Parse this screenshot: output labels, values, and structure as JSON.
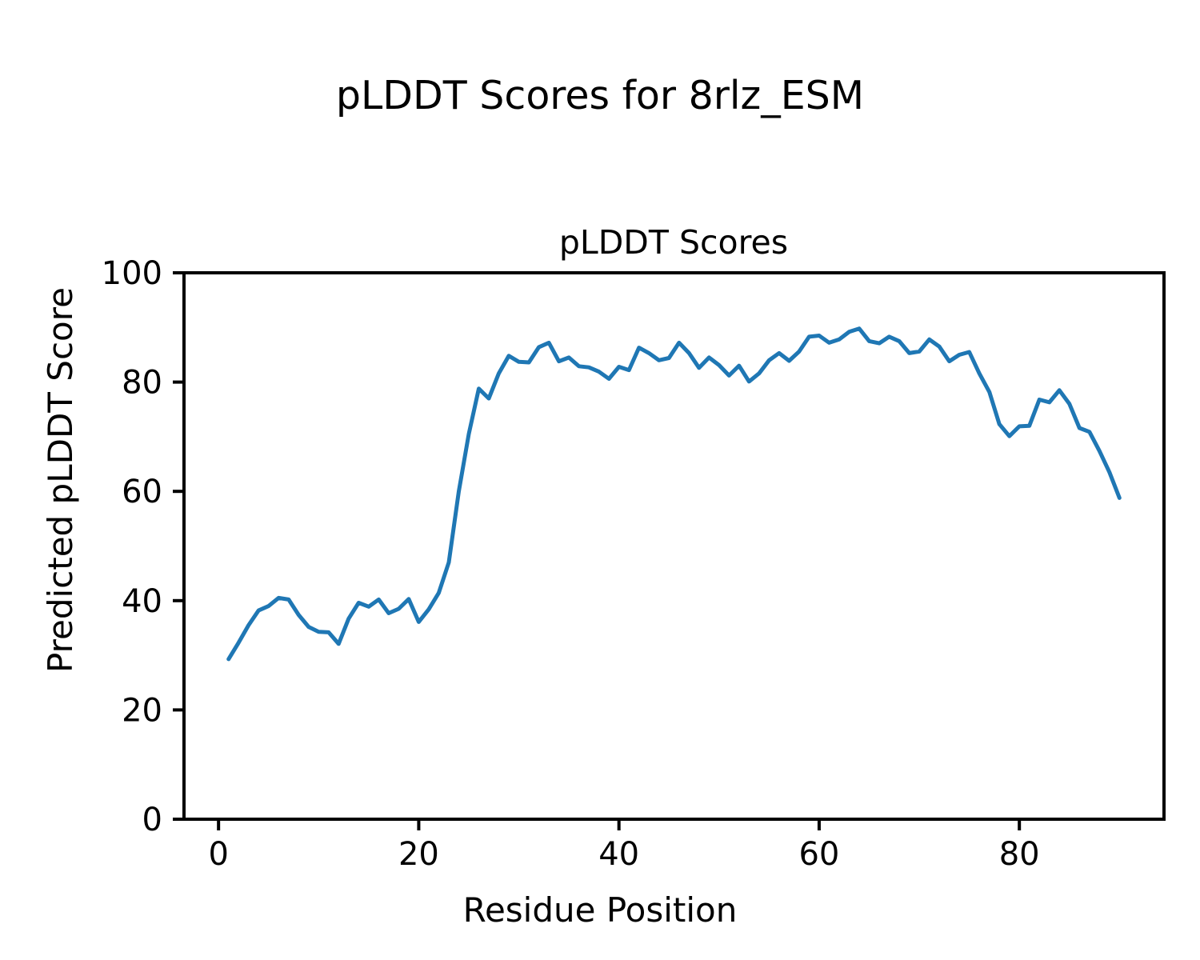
{
  "chart_data": {
    "type": "line",
    "suptitle": "pLDDT Scores for 8rlz_ESM",
    "title": "pLDDT Scores",
    "xlabel": "Residue Position",
    "ylabel": "Predicted pLDDT Score",
    "line_color": "#1f77b4",
    "axis_color": "#000000",
    "legend": "none",
    "grid": false,
    "xlim": [
      -3.45,
      94.45
    ],
    "ylim": [
      0,
      100
    ],
    "x_ticks": [
      0,
      20,
      40,
      60,
      80
    ],
    "y_ticks": [
      0,
      20,
      40,
      60,
      80,
      100
    ],
    "x": [
      1,
      2,
      3,
      4,
      5,
      6,
      7,
      8,
      9,
      10,
      11,
      12,
      13,
      14,
      15,
      16,
      17,
      18,
      19,
      20,
      21,
      22,
      23,
      24,
      25,
      26,
      27,
      28,
      29,
      30,
      31,
      32,
      33,
      34,
      35,
      36,
      37,
      38,
      39,
      40,
      41,
      42,
      43,
      44,
      45,
      46,
      47,
      48,
      49,
      50,
      51,
      52,
      53,
      54,
      55,
      56,
      57,
      58,
      59,
      60,
      61,
      62,
      63,
      64,
      65,
      66,
      67,
      68,
      69,
      70,
      71,
      72,
      73,
      74,
      75,
      76,
      77,
      78,
      79,
      80,
      81,
      82,
      83,
      84,
      85,
      86,
      87,
      88,
      89,
      90
    ],
    "values": [
      29.3,
      32.3,
      35.5,
      38.2,
      39.0,
      40.5,
      40.2,
      37.4,
      35.2,
      34.3,
      34.2,
      32.1,
      36.7,
      39.6,
      38.9,
      40.2,
      37.7,
      38.5,
      40.3,
      36.1,
      38.4,
      41.4,
      47.0,
      60.0,
      70.5,
      78.8,
      77.0,
      81.6,
      84.8,
      83.7,
      83.6,
      86.4,
      87.2,
      83.8,
      84.5,
      82.9,
      82.7,
      81.9,
      80.6,
      82.8,
      82.2,
      86.3,
      85.3,
      84.0,
      84.4,
      87.2,
      85.3,
      82.6,
      84.5,
      83.1,
      81.2,
      83.0,
      80.1,
      81.6,
      84.0,
      85.3,
      83.9,
      85.6,
      88.3,
      88.5,
      87.2,
      87.8,
      89.2,
      89.8,
      87.5,
      87.1,
      88.3,
      87.5,
      85.3,
      85.6,
      87.8,
      86.5,
      83.8,
      85.0,
      85.5,
      81.6,
      78.2,
      72.3,
      70.1,
      71.9,
      72.0,
      76.8,
      76.3,
      78.5,
      76.0,
      71.6,
      70.9,
      67.4,
      63.5,
      58.8
    ]
  }
}
